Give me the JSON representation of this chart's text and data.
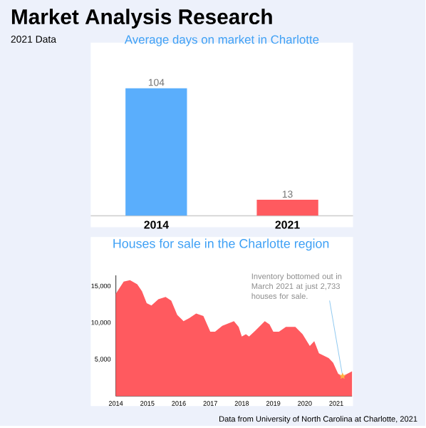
{
  "chart_data": [
    {
      "type": "other",
      "title": "Market Analysis Research",
      "subtitle": "2021 Data",
      "annotations": [
        "Data from University of North Carolina at Charlotte, 2021"
      ]
    },
    {
      "type": "bar",
      "title": "Average days on market in Charlotte",
      "categories": [
        "2014",
        "2021"
      ],
      "values": [
        104,
        13
      ],
      "colors": [
        "#5aaefc",
        "#ff5a5f"
      ],
      "data_labels": true
    },
    {
      "type": "area",
      "title": "Houses for sale in the Charlotte region",
      "x": [
        2014.0,
        2014.25,
        2014.45,
        2014.68,
        2014.83,
        2014.98,
        2015.13,
        2015.35,
        2015.58,
        2015.76,
        2015.95,
        2016.15,
        2016.33,
        2016.55,
        2016.78,
        2017.0,
        2017.15,
        2017.38,
        2017.75,
        2017.9,
        2018.0,
        2018.13,
        2018.23,
        2018.43,
        2018.73,
        2018.88,
        2019.0,
        2019.18,
        2019.4,
        2019.7,
        2019.93,
        2020.16,
        2020.3,
        2020.45,
        2020.76,
        2020.9,
        2021.06,
        2021.2,
        2021.35,
        2021.5
      ],
      "series": [
        {
          "color": "#ff5a5f",
          "values": [
            14000,
            15650,
            15850,
            15300,
            14350,
            12700,
            12400,
            13250,
            13550,
            13050,
            11100,
            10250,
            10650,
            11300,
            10950,
            8800,
            8800,
            9600,
            10250,
            9450,
            8150,
            8450,
            8150,
            8950,
            10250,
            9800,
            8800,
            8800,
            9450,
            9450,
            8450,
            6850,
            7500,
            5850,
            5200,
            4550,
            3050,
            2733,
            3050,
            3400
          ]
        }
      ],
      "xlim": [
        2014,
        2021.5
      ],
      "ylim": [
        0,
        16500
      ],
      "xticks": [
        2014,
        2015,
        2016,
        2017,
        2018,
        2019,
        2020,
        2021
      ],
      "yticks": [
        {
          "value": 5000,
          "label": "5,000"
        },
        {
          "value": 10000,
          "label": "10,000"
        },
        {
          "value": 15000,
          "label": "15,000"
        }
      ],
      "grid": false,
      "annotations": [
        {
          "text": "Inventory bottomed out in March 2021 at just 2,733 houses for sale.",
          "x": 2021.2,
          "y": 2733
        }
      ]
    }
  ]
}
